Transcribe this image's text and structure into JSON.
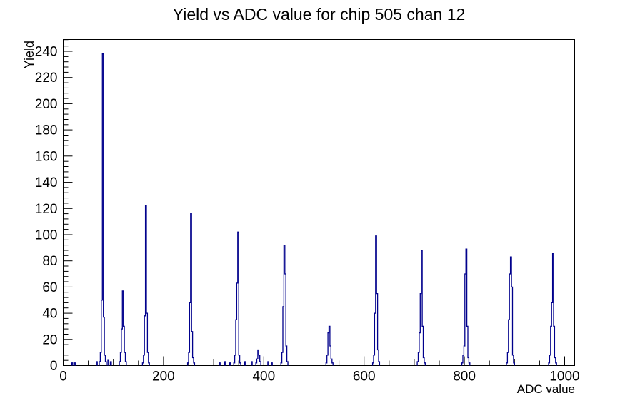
{
  "chart_data": {
    "type": "bar",
    "title": "Yield vs ADC value for chip 505 chan 12",
    "xlabel": "ADC value",
    "ylabel": "Yield",
    "xlim": [
      0,
      1020
    ],
    "ylim": [
      0,
      249
    ],
    "x_major_ticks": [
      0,
      200,
      400,
      600,
      800,
      1000
    ],
    "x_minor_step": 50,
    "y_major_ticks": [
      0,
      20,
      40,
      60,
      80,
      100,
      120,
      140,
      160,
      180,
      200,
      220,
      240
    ],
    "y_minor_step": 4,
    "grid": false,
    "legend": "none",
    "line_color": "#00008c",
    "axis_color": "#000000",
    "peaks": [
      {
        "adc": 79,
        "yield": 238
      },
      {
        "adc": 121,
        "yield": 57
      },
      {
        "adc": 165,
        "yield": 122
      },
      {
        "adc": 255,
        "yield": 116
      },
      {
        "adc": 346,
        "yield": 63
      },
      {
        "adc": 349,
        "yield": 102
      },
      {
        "adc": 389,
        "yield": 12
      },
      {
        "adc": 441,
        "yield": 92
      },
      {
        "adc": 531,
        "yield": 30
      },
      {
        "adc": 624,
        "yield": 99
      },
      {
        "adc": 714,
        "yield": 88
      },
      {
        "adc": 804,
        "yield": 89
      },
      {
        "adc": 893,
        "yield": 83
      },
      {
        "adc": 977,
        "yield": 86
      }
    ],
    "clusters": [
      {
        "start": 72,
        "bin_width": 2,
        "values": [
          3,
          10,
          50,
          238,
          37,
          8,
          3
        ]
      },
      {
        "start": 112,
        "bin_width": 2,
        "values": [
          3,
          10,
          28,
          57,
          30,
          10,
          3
        ]
      },
      {
        "start": 158,
        "bin_width": 2,
        "values": [
          2,
          8,
          38,
          122,
          40,
          10,
          2
        ]
      },
      {
        "start": 248,
        "bin_width": 2,
        "values": [
          2,
          10,
          48,
          116,
          26,
          6,
          2
        ]
      },
      {
        "start": 340,
        "bin_width": 2,
        "values": [
          2,
          8,
          35,
          63,
          102,
          8,
          2
        ]
      },
      {
        "start": 384,
        "bin_width": 2,
        "values": [
          2,
          5,
          12,
          8,
          3
        ]
      },
      {
        "start": 434,
        "bin_width": 2,
        "values": [
          2,
          10,
          45,
          92,
          70,
          15,
          3
        ]
      },
      {
        "start": 524,
        "bin_width": 2,
        "values": [
          2,
          8,
          25,
          30,
          15,
          5,
          2
        ]
      },
      {
        "start": 617,
        "bin_width": 2,
        "values": [
          2,
          8,
          40,
          99,
          55,
          12,
          3
        ]
      },
      {
        "start": 706,
        "bin_width": 2,
        "values": [
          3,
          10,
          25,
          55,
          88,
          30,
          6,
          2
        ]
      },
      {
        "start": 795,
        "bin_width": 2,
        "values": [
          2,
          8,
          15,
          70,
          89,
          30,
          6,
          2
        ]
      },
      {
        "start": 884,
        "bin_width": 2,
        "values": [
          2,
          10,
          35,
          70,
          83,
          60,
          8,
          2
        ]
      },
      {
        "start": 968,
        "bin_width": 2,
        "values": [
          2,
          8,
          30,
          48,
          86,
          30,
          6,
          2
        ]
      }
    ],
    "blips": [
      [
        18,
        2
      ],
      [
        23,
        2
      ],
      [
        67,
        3
      ],
      [
        90,
        4
      ],
      [
        95,
        3
      ],
      [
        312,
        2
      ],
      [
        323,
        3
      ],
      [
        333,
        2
      ],
      [
        363,
        3
      ],
      [
        376,
        3
      ],
      [
        409,
        3
      ],
      [
        416,
        2
      ]
    ]
  }
}
